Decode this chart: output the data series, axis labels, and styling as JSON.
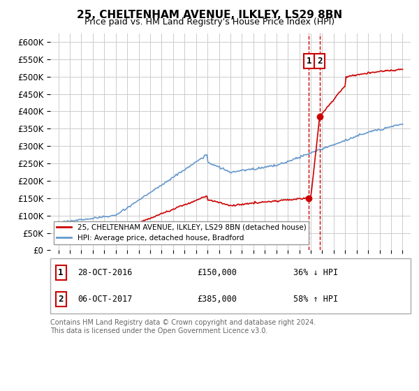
{
  "title": "25, CHELTENHAM AVENUE, ILKLEY, LS29 8BN",
  "subtitle": "Price paid vs. HM Land Registry's House Price Index (HPI)",
  "ylim": [
    0,
    625000
  ],
  "yticks": [
    0,
    50000,
    100000,
    150000,
    200000,
    250000,
    300000,
    350000,
    400000,
    450000,
    500000,
    550000,
    600000
  ],
  "ytick_labels": [
    "£0",
    "£50K",
    "£100K",
    "£150K",
    "£200K",
    "£250K",
    "£300K",
    "£350K",
    "£400K",
    "£450K",
    "£500K",
    "£550K",
    "£600K"
  ],
  "sale1_date": 2016.83,
  "sale1_price": 150000,
  "sale1_label": "1",
  "sale2_date": 2017.77,
  "sale2_price": 385000,
  "sale2_label": "2",
  "line_color_house": "#cc0000",
  "line_color_hpi": "#6699cc",
  "vline_color": "#cc0000",
  "background_color": "#ffffff",
  "grid_color": "#cccccc",
  "legend_label_house": "25, CHELTENHAM AVENUE, ILKLEY, LS29 8BN (detached house)",
  "legend_label_hpi": "HPI: Average price, detached house, Bradford",
  "note1_label": "1",
  "note1_date": "28-OCT-2016",
  "note1_price": "£150,000",
  "note1_pct": "36% ↓ HPI",
  "note2_label": "2",
  "note2_date": "06-OCT-2017",
  "note2_price": "£385,000",
  "note2_pct": "58% ↑ HPI",
  "footer": "Contains HM Land Registry data © Crown copyright and database right 2024.\nThis data is licensed under the Open Government Licence v3.0."
}
